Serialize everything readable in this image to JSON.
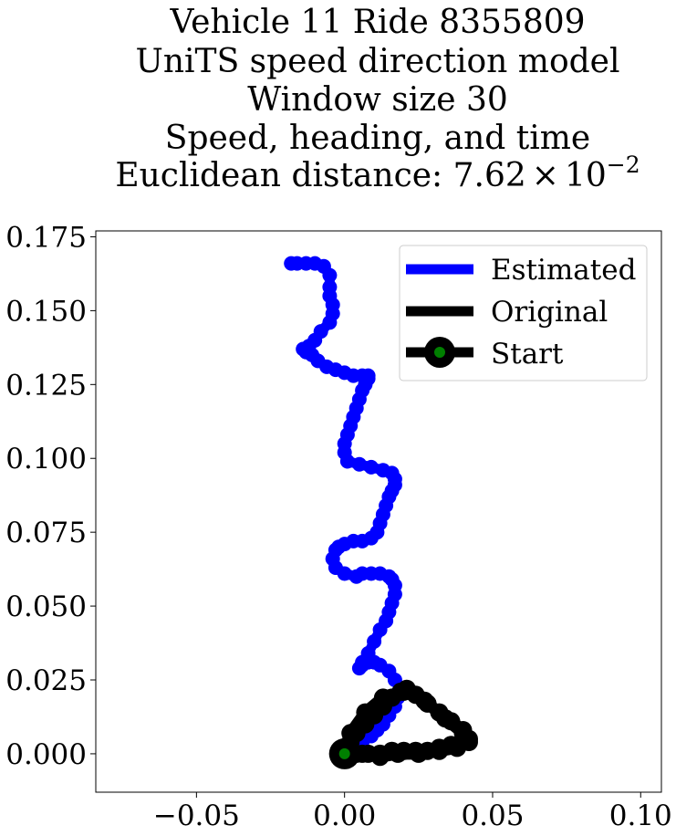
{
  "chart_data": {
    "type": "line",
    "title_lines": [
      "Vehicle 11 Ride 8355809",
      "UniTS speed direction model",
      "Window size 30",
      "Speed, heading, and time"
    ],
    "title_metric_prefix": "Euclidean distance: 7.62",
    "title_metric_times": "×",
    "title_metric_base": "10",
    "title_metric_exp": "−2",
    "xlim": [
      -0.084,
      0.107
    ],
    "ylim": [
      -0.013,
      0.177
    ],
    "x_ticks": [
      -0.05,
      0.0,
      0.05,
      0.1
    ],
    "x_tick_labels": [
      "−0.05",
      "0.00",
      "0.05",
      "0.10"
    ],
    "y_ticks": [
      0.0,
      0.025,
      0.05,
      0.075,
      0.1,
      0.125,
      0.15,
      0.175
    ],
    "y_tick_labels": [
      "0.000",
      "0.025",
      "0.050",
      "0.075",
      "0.100",
      "0.125",
      "0.150",
      "0.175"
    ],
    "grid": false,
    "legend_position": "top-right",
    "colors": {
      "estimated": "#0000ff",
      "original": "#000000",
      "start_marker": "#008000"
    },
    "series": [
      {
        "name": "Estimated",
        "x": [
          0.0,
          0.003,
          0.006,
          0.009,
          0.011,
          0.013,
          0.015,
          0.017,
          0.018,
          0.019,
          0.017,
          0.015,
          0.012,
          0.01,
          0.008,
          0.006,
          0.005,
          0.006,
          0.008,
          0.01,
          0.012,
          0.014,
          0.015,
          0.016,
          0.017,
          0.017,
          0.016,
          0.015,
          0.012,
          0.009,
          0.006,
          0.004,
          0.0,
          -0.003,
          -0.004,
          -0.003,
          -0.002,
          0.0,
          0.003,
          0.006,
          0.009,
          0.011,
          0.012,
          0.013,
          0.014,
          0.015,
          0.016,
          0.017,
          0.017,
          0.016,
          0.013,
          0.009,
          0.005,
          0.001,
          0.0,
          0.0,
          0.001,
          0.002,
          0.003,
          0.004,
          0.005,
          0.006,
          0.007,
          0.008,
          0.008,
          0.006,
          0.003,
          0.0,
          -0.003,
          -0.006,
          -0.009,
          -0.011,
          -0.013,
          -0.014,
          -0.012,
          -0.01,
          -0.008,
          -0.005,
          -0.004,
          -0.004,
          -0.005,
          -0.005,
          -0.005,
          -0.007,
          -0.01,
          -0.013,
          -0.016,
          -0.018
        ],
        "y": [
          0.0,
          0.002,
          0.004,
          0.006,
          0.008,
          0.01,
          0.013,
          0.016,
          0.019,
          0.022,
          0.025,
          0.028,
          0.03,
          0.031,
          0.031,
          0.03,
          0.029,
          0.031,
          0.034,
          0.038,
          0.042,
          0.045,
          0.048,
          0.051,
          0.054,
          0.057,
          0.059,
          0.06,
          0.061,
          0.061,
          0.061,
          0.06,
          0.061,
          0.063,
          0.066,
          0.069,
          0.07,
          0.071,
          0.072,
          0.072,
          0.073,
          0.075,
          0.078,
          0.081,
          0.084,
          0.087,
          0.089,
          0.091,
          0.093,
          0.095,
          0.096,
          0.097,
          0.098,
          0.099,
          0.102,
          0.105,
          0.108,
          0.111,
          0.114,
          0.117,
          0.12,
          0.123,
          0.125,
          0.127,
          0.128,
          0.128,
          0.128,
          0.129,
          0.13,
          0.131,
          0.133,
          0.135,
          0.136,
          0.137,
          0.138,
          0.14,
          0.143,
          0.146,
          0.149,
          0.152,
          0.155,
          0.158,
          0.162,
          0.165,
          0.166,
          0.166,
          0.166,
          0.166
        ]
      },
      {
        "name": "Original",
        "x": [
          0.0,
          0.004,
          0.008,
          0.012,
          0.016,
          0.02,
          0.024,
          0.028,
          0.032,
          0.036,
          0.04,
          0.042,
          0.04,
          0.036,
          0.032,
          0.028,
          0.024,
          0.021,
          0.019,
          0.016,
          0.013,
          0.01,
          0.007,
          0.004,
          0.002,
          0.0,
          0.006,
          0.012,
          0.018,
          0.025,
          0.032,
          0.038,
          0.042,
          0.04,
          0.034,
          0.027,
          0.02,
          0.013,
          0.007,
          0.002,
          0.0
        ],
        "y": [
          0.0,
          0.0,
          0.0,
          0.0,
          0.001,
          0.001,
          0.001,
          0.001,
          0.002,
          0.003,
          0.004,
          0.005,
          0.008,
          0.011,
          0.014,
          0.017,
          0.02,
          0.022,
          0.021,
          0.019,
          0.016,
          0.013,
          0.01,
          0.007,
          0.004,
          0.001,
          0.0,
          -0.001,
          0.0,
          0.0,
          0.001,
          0.002,
          0.004,
          0.007,
          0.012,
          0.018,
          0.021,
          0.019,
          0.014,
          0.007,
          0.0
        ]
      }
    ],
    "start_point": {
      "name": "Start",
      "x": 0.0,
      "y": 0.0
    }
  }
}
